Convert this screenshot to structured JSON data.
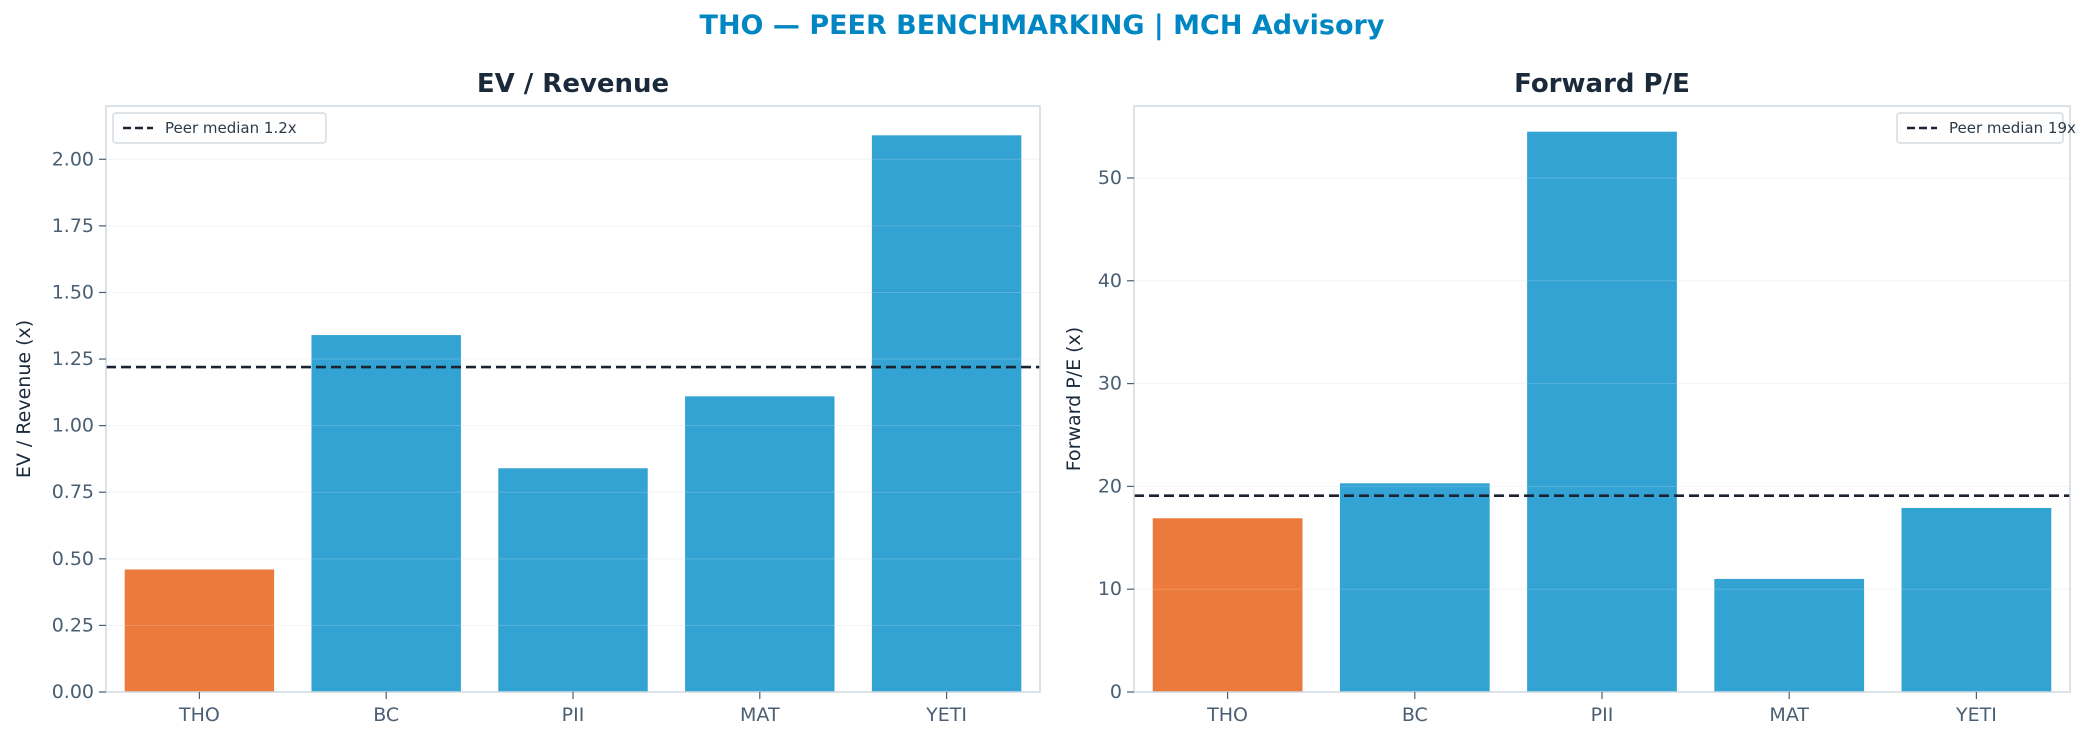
{
  "figure": {
    "suptitle": "THO — PEER BENCHMARKING | MCH Advisory"
  },
  "colors": {
    "suptitle": "#0087c3",
    "panel_title": "#1b2a3a",
    "axis_label": "#1b2a3a",
    "tick_label": "#4a5f73",
    "spine": "#cfd8e0",
    "grid": "#eef3f6",
    "highlight_bar": "#ec7a3d",
    "peer_bar": "#33a3d4",
    "median_line": "#1b2333",
    "legend_text": "#2c3a48",
    "legend_border": "#c9d2da"
  },
  "chart_data": [
    {
      "type": "bar",
      "title": "EV / Revenue",
      "xlabel": "",
      "ylabel": "EV / Revenue (x)",
      "categories": [
        "THO",
        "BC",
        "PII",
        "MAT",
        "YETI"
      ],
      "values": [
        0.46,
        1.34,
        0.84,
        1.11,
        2.09
      ],
      "highlight_category": "THO",
      "ylim": [
        0,
        2.2
      ],
      "yticks": [
        0,
        0.25,
        0.5,
        0.75,
        1.0,
        1.25,
        1.5,
        1.75,
        2.0
      ],
      "ytick_labels": [
        "0.00",
        "0.25",
        "0.50",
        "0.75",
        "1.00",
        "1.25",
        "1.50",
        "1.75",
        "2.00"
      ],
      "reference_line": {
        "value": 1.22,
        "label": "Peer median 1.2x",
        "style": "dashed"
      },
      "legend_position": "top-left",
      "grid": "y"
    },
    {
      "type": "bar",
      "title": "Forward P/E",
      "xlabel": "",
      "ylabel": "Forward P/E (x)",
      "categories": [
        "THO",
        "BC",
        "PII",
        "MAT",
        "YETI"
      ],
      "values": [
        16.9,
        20.3,
        54.5,
        11.0,
        17.9
      ],
      "highlight_category": "THO",
      "ylim": [
        0,
        57
      ],
      "yticks": [
        0,
        10,
        20,
        30,
        40,
        50
      ],
      "ytick_labels": [
        "0",
        "10",
        "20",
        "30",
        "40",
        "50"
      ],
      "reference_line": {
        "value": 19.1,
        "label": "Peer median 19x",
        "style": "dashed"
      },
      "legend_position": "top-right",
      "grid": "y"
    }
  ]
}
